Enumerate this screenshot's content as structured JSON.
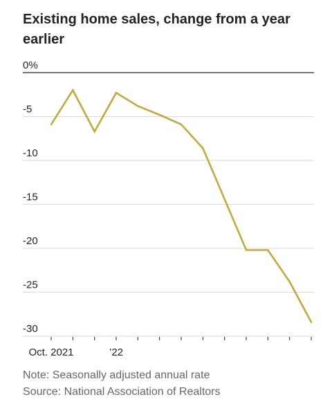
{
  "title": "Existing home sales, change from a year earlier",
  "chart_data": {
    "type": "line",
    "title": "Existing home sales, change from a year earlier",
    "xlabel": "",
    "ylabel": "",
    "x_tick_labels": [
      {
        "label": "Oct. 2021",
        "index": 0
      },
      {
        "label": "’22",
        "index": 3
      }
    ],
    "x": [
      "2021-10",
      "2021-11",
      "2021-12",
      "2022-01",
      "2022-02",
      "2022-03",
      "2022-04",
      "2022-05",
      "2022-06",
      "2022-07",
      "2022-08",
      "2022-09",
      "2022-10"
    ],
    "series": [
      {
        "values": [
          -5.9,
          -2.0,
          -6.7,
          -2.3,
          -3.8,
          -4.8,
          -5.9,
          -8.6,
          -14.4,
          -20.2,
          -20.2,
          -23.8,
          -28.4
        ]
      }
    ],
    "ylim": [
      -30,
      0
    ],
    "y_ticks": [
      0,
      -5,
      -10,
      -15,
      -20,
      -25,
      -30
    ],
    "y_tick_labels": [
      "0%",
      "-5",
      "-10",
      "-15",
      "-20",
      "-25",
      "-30"
    ],
    "grid": true,
    "line_color": "#c5a938"
  },
  "notes": {
    "note": "Note: Seasonally adjusted annual rate",
    "source": "Source: National Association of Realtors"
  }
}
